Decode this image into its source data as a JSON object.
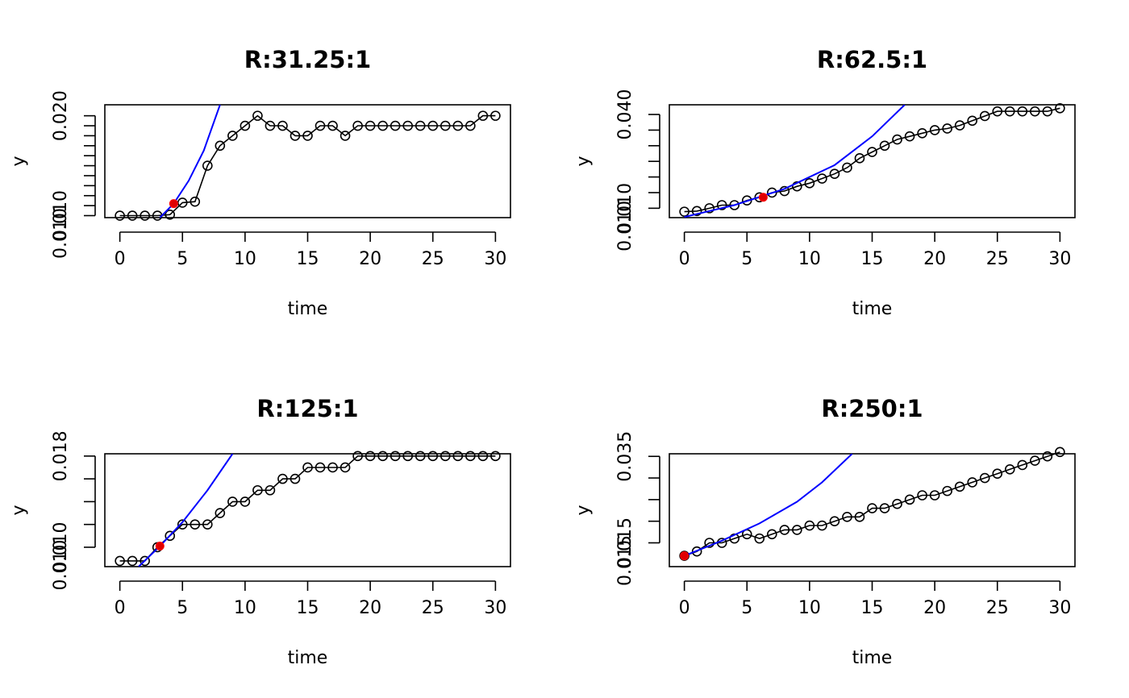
{
  "colors": {
    "fit": "#0000ff",
    "highlight": "#e00000",
    "points": "#000000"
  },
  "chart_data": [
    {
      "type": "scatter",
      "title": "R:31.25:1",
      "xlabel": "time",
      "ylabel": "y",
      "xlim": [
        -1.2,
        31.2
      ],
      "ylim": [
        0.0098,
        0.0211
      ],
      "x_ticks": [
        0,
        5,
        10,
        15,
        20,
        25,
        30
      ],
      "y_ticks": [
        0.01,
        0.011,
        0.012,
        0.013,
        0.014,
        0.015,
        0.016,
        0.017,
        0.018,
        0.019,
        0.02
      ],
      "y_tick_labels": [
        {
          "value": 0.01,
          "label": "0.010"
        },
        {
          "value": 0.02,
          "label": "0.020"
        },
        {
          "value": 0.01,
          "label": "0.010",
          "offset_row": true
        }
      ],
      "x": [
        0,
        1,
        2,
        3,
        4,
        5,
        6,
        7,
        8,
        9,
        10,
        11,
        12,
        13,
        14,
        15,
        16,
        17,
        18,
        19,
        20,
        21,
        22,
        23,
        24,
        25,
        26,
        27,
        28,
        29,
        30
      ],
      "values": [
        0.01,
        0.01,
        0.01,
        0.01,
        0.0101,
        0.0113,
        0.0114,
        0.015,
        0.017,
        0.018,
        0.019,
        0.02,
        0.019,
        0.019,
        0.018,
        0.018,
        0.019,
        0.019,
        0.018,
        0.019,
        0.019,
        0.019,
        0.019,
        0.019,
        0.019,
        0.019,
        0.019,
        0.019,
        0.019,
        0.02,
        0.02
      ],
      "fit_curve": {
        "x": [
          3.2,
          4.3,
          5.5,
          6.7,
          8.0
        ],
        "y": [
          0.0098,
          0.0112,
          0.0135,
          0.0165,
          0.0211
        ]
      },
      "highlight": {
        "x": 4.3,
        "y": 0.0112
      }
    },
    {
      "type": "scatter",
      "title": "R:62.5:1",
      "xlabel": "time",
      "ylabel": "y",
      "xlim": [
        -1.2,
        31.2
      ],
      "ylim": [
        0.007,
        0.0431
      ],
      "x_ticks": [
        0,
        5,
        10,
        15,
        20,
        25,
        30
      ],
      "y_ticks": [
        0.01,
        0.015,
        0.02,
        0.025,
        0.03,
        0.035,
        0.04
      ],
      "y_tick_labels": [
        {
          "value": 0.01,
          "label": "0.010"
        },
        {
          "value": 0.04,
          "label": "0.040"
        },
        {
          "value": 0.01,
          "label": "0.010",
          "offset_row": true
        }
      ],
      "x": [
        0,
        1,
        2,
        3,
        4,
        5,
        6,
        7,
        8,
        9,
        10,
        11,
        12,
        13,
        14,
        15,
        16,
        17,
        18,
        19,
        20,
        21,
        22,
        23,
        24,
        25,
        26,
        27,
        28,
        29,
        30
      ],
      "values": [
        0.0089,
        0.0091,
        0.01,
        0.011,
        0.011,
        0.0125,
        0.0135,
        0.015,
        0.0155,
        0.017,
        0.018,
        0.0195,
        0.021,
        0.023,
        0.026,
        0.028,
        0.03,
        0.032,
        0.033,
        0.034,
        0.035,
        0.0355,
        0.0365,
        0.038,
        0.0395,
        0.041,
        0.041,
        0.041,
        0.041,
        0.041,
        0.042
      ],
      "fit_curve": {
        "x": [
          0,
          4,
          8,
          12,
          15,
          17.6
        ],
        "y": [
          0.0072,
          0.011,
          0.0162,
          0.0238,
          0.033,
          0.0431
        ]
      },
      "highlight": {
        "x": 6.3,
        "y": 0.0135
      }
    },
    {
      "type": "scatter",
      "title": "R:125:1",
      "xlabel": "time",
      "ylabel": "y",
      "xlim": [
        -1.2,
        31.2
      ],
      "ylim": [
        0.0083,
        0.0182
      ],
      "x_ticks": [
        0,
        5,
        10,
        15,
        20,
        25,
        30
      ],
      "y_ticks": [
        0.01,
        0.012,
        0.014,
        0.016,
        0.018
      ],
      "y_tick_labels": [
        {
          "value": 0.01,
          "label": "0.010"
        },
        {
          "value": 0.018,
          "label": "0.018"
        },
        {
          "value": 0.01,
          "label": "0.010",
          "offset_row": true
        }
      ],
      "x": [
        0,
        1,
        2,
        3,
        4,
        5,
        6,
        7,
        8,
        9,
        10,
        11,
        12,
        13,
        14,
        15,
        16,
        17,
        18,
        19,
        20,
        21,
        22,
        23,
        24,
        25,
        26,
        27,
        28,
        29,
        30
      ],
      "values": [
        0.0088,
        0.0088,
        0.0088,
        0.01,
        0.011,
        0.012,
        0.012,
        0.012,
        0.013,
        0.014,
        0.014,
        0.015,
        0.015,
        0.016,
        0.016,
        0.017,
        0.017,
        0.017,
        0.017,
        0.018,
        0.018,
        0.018,
        0.018,
        0.018,
        0.018,
        0.018,
        0.018,
        0.018,
        0.018,
        0.018,
        0.018
      ],
      "fit_curve": {
        "x": [
          1.5,
          3.2,
          5.0,
          7.0,
          9.0
        ],
        "y": [
          0.0083,
          0.0101,
          0.0122,
          0.015,
          0.0182
        ]
      },
      "highlight": {
        "x": 3.2,
        "y": 0.0101
      }
    },
    {
      "type": "scatter",
      "title": "R:250:1",
      "xlabel": "time",
      "ylabel": "y",
      "xlim": [
        -1.2,
        31.2
      ],
      "ylim": [
        0.0095,
        0.0356
      ],
      "x_ticks": [
        0,
        5,
        10,
        15,
        20,
        25,
        30
      ],
      "y_ticks": [
        0.015,
        0.02,
        0.025,
        0.03,
        0.035
      ],
      "y_tick_labels": [
        {
          "value": 0.015,
          "label": "0.015"
        },
        {
          "value": 0.035,
          "label": "0.035"
        },
        {
          "value": 0.015,
          "label": "0.015",
          "offset_row": true
        }
      ],
      "x": [
        0,
        1,
        2,
        3,
        4,
        5,
        6,
        7,
        8,
        9,
        10,
        11,
        12,
        13,
        14,
        15,
        16,
        17,
        18,
        19,
        20,
        21,
        22,
        23,
        24,
        25,
        26,
        27,
        28,
        29,
        30
      ],
      "values": [
        0.012,
        0.013,
        0.015,
        0.015,
        0.016,
        0.017,
        0.016,
        0.017,
        0.018,
        0.018,
        0.019,
        0.019,
        0.02,
        0.021,
        0.021,
        0.023,
        0.023,
        0.024,
        0.025,
        0.026,
        0.026,
        0.027,
        0.028,
        0.029,
        0.03,
        0.031,
        0.032,
        0.033,
        0.034,
        0.035,
        0.036
      ],
      "fit_curve": {
        "x": [
          0,
          3,
          6,
          9,
          11,
          13.4
        ],
        "y": [
          0.012,
          0.0155,
          0.0195,
          0.0245,
          0.029,
          0.0356
        ]
      },
      "highlight": {
        "x": 0,
        "y": 0.012
      }
    }
  ]
}
